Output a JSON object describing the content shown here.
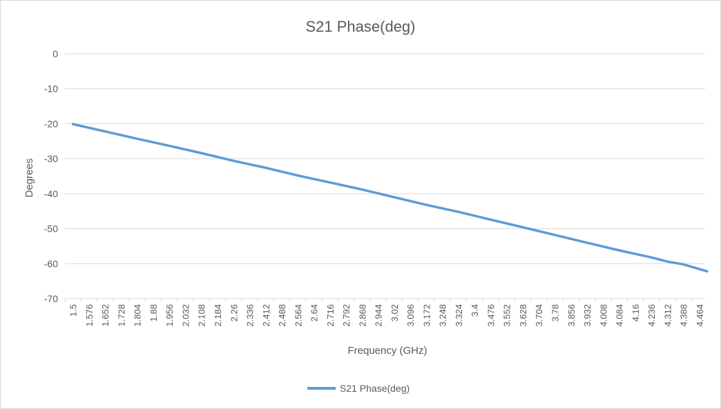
{
  "chart_data": {
    "type": "line",
    "title": "S21 Phase(deg)",
    "xlabel": "Frequency (GHz)",
    "ylabel": "Degrees",
    "ylim": [
      -70,
      0
    ],
    "yticks": [
      "0",
      "-10",
      "-20",
      "-30",
      "-40",
      "-50",
      "-60",
      "-70"
    ],
    "xticks": [
      "1.5",
      "1.576",
      "1.652",
      "1.728",
      "1.804",
      "1.88",
      "1.956",
      "2.032",
      "2.108",
      "2.184",
      "2.26",
      "2.336",
      "2.412",
      "2.488",
      "2.564",
      "2.64",
      "2.716",
      "2.792",
      "2.868",
      "2.944",
      "3.02",
      "3.096",
      "3.172",
      "3.248",
      "3.324",
      "3.4",
      "3.476",
      "3.552",
      "3.628",
      "3.704",
      "3.78",
      "3.856",
      "3.932",
      "4.008",
      "4.084",
      "4.16",
      "4.236",
      "4.312",
      "4.388",
      "4.464"
    ],
    "grid": true,
    "legend_position": "bottom",
    "series": [
      {
        "name": "S21 Phase(deg)",
        "color": "#5b9bd5",
        "x": [
          1.5,
          1.652,
          1.804,
          1.956,
          2.108,
          2.26,
          2.412,
          2.564,
          2.716,
          2.868,
          3.02,
          3.172,
          3.324,
          3.476,
          3.628,
          3.78,
          3.932,
          4.084,
          4.236,
          4.312,
          4.388,
          4.5
        ],
        "y": [
          -20.1,
          -22.2,
          -24.3,
          -26.3,
          -28.4,
          -30.6,
          -32.6,
          -34.8,
          -36.8,
          -38.8,
          -41.0,
          -43.2,
          -45.2,
          -47.4,
          -49.6,
          -51.8,
          -54.0,
          -56.2,
          -58.2,
          -59.4,
          -60.2,
          -62.2
        ]
      }
    ]
  }
}
